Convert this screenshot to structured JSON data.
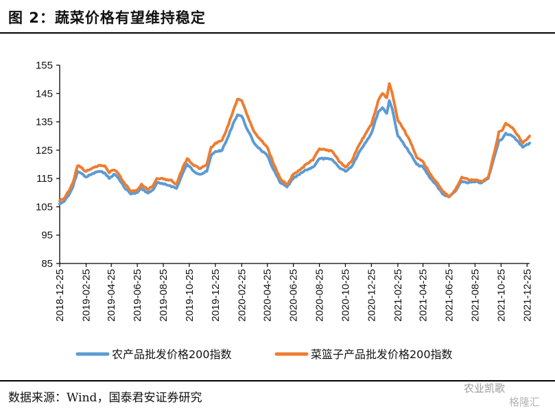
{
  "header": {
    "title": "图 2：蔬菜价格有望维持稳定"
  },
  "footer": {
    "source": "数据来源：Wind，国泰君安证券研究",
    "watermark": "农业凯歌",
    "watermark_sub": "格隆汇"
  },
  "colors": {
    "series1": "#5b9bd5",
    "series2": "#ed7d31"
  },
  "chart_data": {
    "type": "line",
    "title": "",
    "xlabel": "",
    "ylabel": "",
    "ylim": [
      85,
      155
    ],
    "yticks": [
      85,
      95,
      105,
      115,
      125,
      135,
      145,
      155
    ],
    "x_range": [
      "2018-12-25",
      "2021-12-31"
    ],
    "xticks": [
      "2018-12-25",
      "2019-02-25",
      "2019-04-25",
      "2019-06-25",
      "2019-08-25",
      "2019-10-25",
      "2019-12-25",
      "2020-02-25",
      "2020-04-25",
      "2020-06-25",
      "2020-08-25",
      "2020-10-25",
      "2020-12-25",
      "2021-02-25",
      "2021-04-25",
      "2021-06-25",
      "2021-08-25",
      "2021-10-25",
      "2021-12-25"
    ],
    "legend_position": "bottom",
    "series": [
      {
        "name": "农产品批发价格200指数",
        "color": "#5b9bd5",
        "points": [
          [
            "2018-12-25",
            106.0
          ],
          [
            "2019-01-05",
            107.0
          ],
          [
            "2019-01-15",
            109.0
          ],
          [
            "2019-01-25",
            112.0
          ],
          [
            "2019-02-05",
            117.5
          ],
          [
            "2019-02-12",
            117.0
          ],
          [
            "2019-02-25",
            115.5
          ],
          [
            "2019-03-10",
            116.5
          ],
          [
            "2019-03-25",
            117.5
          ],
          [
            "2019-04-10",
            117.0
          ],
          [
            "2019-04-20",
            115.0
          ],
          [
            "2019-05-01",
            116.5
          ],
          [
            "2019-05-10",
            115.5
          ],
          [
            "2019-05-25",
            112.0
          ],
          [
            "2019-06-10",
            109.5
          ],
          [
            "2019-06-25",
            110.0
          ],
          [
            "2019-07-05",
            111.5
          ],
          [
            "2019-07-20",
            109.8
          ],
          [
            "2019-08-01",
            111.0
          ],
          [
            "2019-08-10",
            113.5
          ],
          [
            "2019-08-25",
            113.0
          ],
          [
            "2019-09-10",
            112.5
          ],
          [
            "2019-09-25",
            111.5
          ],
          [
            "2019-10-10",
            117.0
          ],
          [
            "2019-10-20",
            120.0
          ],
          [
            "2019-11-05",
            117.5
          ],
          [
            "2019-11-20",
            116.5
          ],
          [
            "2019-12-05",
            117.5
          ],
          [
            "2019-12-15",
            123.0
          ],
          [
            "2019-12-25",
            124.5
          ],
          [
            "2020-01-10",
            125.0
          ],
          [
            "2020-01-25",
            130.0
          ],
          [
            "2020-02-05",
            134.5
          ],
          [
            "2020-02-15",
            137.5
          ],
          [
            "2020-02-25",
            137.0
          ],
          [
            "2020-03-10",
            132.0
          ],
          [
            "2020-03-25",
            127.5
          ],
          [
            "2020-04-10",
            125.0
          ],
          [
            "2020-04-25",
            123.0
          ],
          [
            "2020-05-10",
            118.0
          ],
          [
            "2020-05-25",
            113.5
          ],
          [
            "2020-06-10",
            112.0
          ],
          [
            "2020-06-25",
            115.0
          ],
          [
            "2020-07-10",
            116.5
          ],
          [
            "2020-07-25",
            118.0
          ],
          [
            "2020-08-10",
            119.0
          ],
          [
            "2020-08-25",
            122.0
          ],
          [
            "2020-09-10",
            122.0
          ],
          [
            "2020-09-25",
            121.5
          ],
          [
            "2020-10-10",
            119.0
          ],
          [
            "2020-10-25",
            117.5
          ],
          [
            "2020-11-10",
            119.5
          ],
          [
            "2020-11-25",
            124.0
          ],
          [
            "2020-12-10",
            127.5
          ],
          [
            "2020-12-25",
            131.0
          ],
          [
            "2021-01-10",
            138.5
          ],
          [
            "2021-01-20",
            140.0
          ],
          [
            "2021-01-30",
            138.0
          ],
          [
            "2021-02-05",
            142.5
          ],
          [
            "2021-02-12",
            139.5
          ],
          [
            "2021-02-25",
            130.0
          ],
          [
            "2021-03-10",
            127.5
          ],
          [
            "2021-03-25",
            124.0
          ],
          [
            "2021-04-10",
            120.0
          ],
          [
            "2021-04-25",
            119.0
          ],
          [
            "2021-05-10",
            115.5
          ],
          [
            "2021-05-25",
            113.0
          ],
          [
            "2021-06-10",
            109.5
          ],
          [
            "2021-06-25",
            108.5
          ],
          [
            "2021-07-10",
            110.5
          ],
          [
            "2021-07-25",
            114.0
          ],
          [
            "2021-08-10",
            113.5
          ],
          [
            "2021-08-25",
            113.8
          ],
          [
            "2021-09-10",
            113.5
          ],
          [
            "2021-09-25",
            115.0
          ],
          [
            "2021-10-10",
            123.0
          ],
          [
            "2021-10-20",
            128.5
          ],
          [
            "2021-10-28",
            129.0
          ],
          [
            "2021-11-05",
            131.0
          ],
          [
            "2021-11-20",
            130.0
          ],
          [
            "2021-12-05",
            128.0
          ],
          [
            "2021-12-15",
            126.0
          ],
          [
            "2021-12-31",
            127.5
          ]
        ]
      },
      {
        "name": "菜篮子产品批发价格200指数",
        "color": "#ed7d31",
        "points": [
          [
            "2018-12-25",
            107.0
          ],
          [
            "2019-01-05",
            108.0
          ],
          [
            "2019-01-15",
            110.5
          ],
          [
            "2019-01-25",
            113.5
          ],
          [
            "2019-02-05",
            119.5
          ],
          [
            "2019-02-12",
            119.0
          ],
          [
            "2019-02-25",
            117.5
          ],
          [
            "2019-03-10",
            118.5
          ],
          [
            "2019-03-25",
            119.5
          ],
          [
            "2019-04-10",
            119.5
          ],
          [
            "2019-04-20",
            117.0
          ],
          [
            "2019-05-01",
            118.0
          ],
          [
            "2019-05-10",
            117.0
          ],
          [
            "2019-05-25",
            113.5
          ],
          [
            "2019-06-10",
            110.5
          ],
          [
            "2019-06-25",
            111.0
          ],
          [
            "2019-07-05",
            113.0
          ],
          [
            "2019-07-20",
            111.0
          ],
          [
            "2019-08-01",
            112.5
          ],
          [
            "2019-08-10",
            115.0
          ],
          [
            "2019-08-25",
            114.8
          ],
          [
            "2019-09-10",
            114.5
          ],
          [
            "2019-09-25",
            113.0
          ],
          [
            "2019-10-10",
            119.0
          ],
          [
            "2019-10-20",
            122.0
          ],
          [
            "2019-11-05",
            119.5
          ],
          [
            "2019-11-20",
            118.5
          ],
          [
            "2019-12-05",
            120.0
          ],
          [
            "2019-12-15",
            126.0
          ],
          [
            "2019-12-25",
            127.5
          ],
          [
            "2020-01-10",
            128.5
          ],
          [
            "2020-01-25",
            134.0
          ],
          [
            "2020-02-05",
            139.0
          ],
          [
            "2020-02-15",
            143.0
          ],
          [
            "2020-02-25",
            142.5
          ],
          [
            "2020-03-10",
            137.0
          ],
          [
            "2020-03-25",
            131.5
          ],
          [
            "2020-04-10",
            128.5
          ],
          [
            "2020-04-25",
            126.0
          ],
          [
            "2020-05-10",
            120.0
          ],
          [
            "2020-05-25",
            115.0
          ],
          [
            "2020-06-10",
            113.0
          ],
          [
            "2020-06-25",
            116.5
          ],
          [
            "2020-07-10",
            118.0
          ],
          [
            "2020-07-25",
            120.0
          ],
          [
            "2020-08-10",
            121.5
          ],
          [
            "2020-08-25",
            125.5
          ],
          [
            "2020-09-10",
            125.0
          ],
          [
            "2020-09-25",
            124.5
          ],
          [
            "2020-10-10",
            121.0
          ],
          [
            "2020-10-25",
            119.0
          ],
          [
            "2020-11-10",
            121.5
          ],
          [
            "2020-11-25",
            126.5
          ],
          [
            "2020-12-10",
            130.5
          ],
          [
            "2020-12-25",
            134.0
          ],
          [
            "2021-01-10",
            142.5
          ],
          [
            "2021-01-20",
            145.0
          ],
          [
            "2021-01-30",
            143.5
          ],
          [
            "2021-02-05",
            148.5
          ],
          [
            "2021-02-12",
            145.0
          ],
          [
            "2021-02-25",
            135.5
          ],
          [
            "2021-03-10",
            132.5
          ],
          [
            "2021-03-25",
            128.5
          ],
          [
            "2021-04-10",
            122.5
          ],
          [
            "2021-04-25",
            121.0
          ],
          [
            "2021-05-10",
            117.0
          ],
          [
            "2021-05-25",
            114.0
          ],
          [
            "2021-06-10",
            110.5
          ],
          [
            "2021-06-25",
            108.5
          ],
          [
            "2021-07-10",
            111.0
          ],
          [
            "2021-07-25",
            115.5
          ],
          [
            "2021-08-10",
            114.5
          ],
          [
            "2021-08-25",
            114.5
          ],
          [
            "2021-09-10",
            114.0
          ],
          [
            "2021-09-25",
            115.5
          ],
          [
            "2021-10-10",
            124.5
          ],
          [
            "2021-10-20",
            131.5
          ],
          [
            "2021-10-28",
            132.0
          ],
          [
            "2021-11-05",
            134.5
          ],
          [
            "2021-11-20",
            133.0
          ],
          [
            "2021-12-05",
            130.0
          ],
          [
            "2021-12-15",
            127.5
          ],
          [
            "2021-12-31",
            130.0
          ]
        ]
      }
    ]
  }
}
